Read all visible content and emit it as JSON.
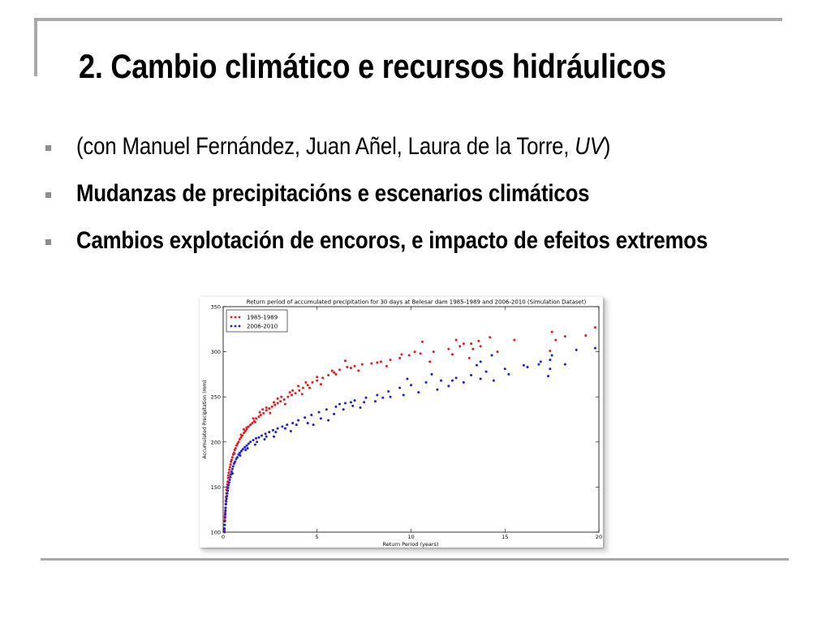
{
  "slide": {
    "title": "2. Cambio climático e recursos hidráulicos",
    "bullets": [
      {
        "prefix": "(con Manuel Fernández, Juan Añel, Laura de la Torre, ",
        "italic": "UV",
        "suffix": ")"
      },
      {
        "text": "Mudanzas de precipitacións e escenarios climáticos"
      },
      {
        "text": "Cambios explotación de encoros, e impacto de efeitos extremos"
      }
    ]
  },
  "chart_data": {
    "type": "scatter",
    "title": "Return period of accumulated precipitation for 30 days at Belesar dam 1985-1989 and 2006-2010 (Simulation Dataset)",
    "xlabel": "Return Period (years)",
    "ylabel": "Accumulated Precipitation (mm)",
    "xlim": [
      0,
      20
    ],
    "ylim": [
      100,
      350
    ],
    "xticks": [
      "0",
      "5",
      "10",
      "15",
      "20"
    ],
    "yticks": [
      "100",
      "150",
      "200",
      "250",
      "300",
      "350"
    ],
    "legend_position": "top-left",
    "grid": false,
    "colors": {
      "series_1985": "#e3191b",
      "series_2006": "#1a1ae0"
    },
    "series": [
      {
        "name": "1985-1989",
        "color": "#e3191b",
        "points": [
          [
            0.07,
            102
          ],
          [
            0.08,
            108
          ],
          [
            0.09,
            113
          ],
          [
            0.1,
            118
          ],
          [
            0.11,
            122
          ],
          [
            0.12,
            127
          ],
          [
            0.13,
            131
          ],
          [
            0.14,
            135
          ],
          [
            0.15,
            139
          ],
          [
            0.17,
            143
          ],
          [
            0.18,
            147
          ],
          [
            0.2,
            150
          ],
          [
            0.22,
            153
          ],
          [
            0.24,
            156
          ],
          [
            0.26,
            160
          ],
          [
            0.28,
            163
          ],
          [
            0.3,
            166
          ],
          [
            0.33,
            169
          ],
          [
            0.36,
            172
          ],
          [
            0.39,
            175
          ],
          [
            0.42,
            178
          ],
          [
            0.45,
            180
          ],
          [
            0.49,
            183
          ],
          [
            0.53,
            186
          ],
          [
            0.57,
            188
          ],
          [
            0.61,
            191
          ],
          [
            0.66,
            193
          ],
          [
            0.71,
            196
          ],
          [
            0.76,
            198
          ],
          [
            0.82,
            200
          ],
          [
            0.88,
            203
          ],
          [
            0.95,
            205
          ],
          [
            1.02,
            207
          ],
          [
            1.1,
            210
          ],
          [
            1.18,
            212
          ],
          [
            1.25,
            214
          ],
          [
            1.35,
            217
          ],
          [
            1.45,
            219
          ],
          [
            1.55,
            221
          ],
          [
            1.65,
            223
          ],
          [
            1.75,
            226
          ],
          [
            1.9,
            228
          ],
          [
            2.0,
            230
          ],
          [
            2.15,
            232
          ],
          [
            2.3,
            235
          ],
          [
            2.45,
            237
          ],
          [
            2.6,
            239
          ],
          [
            2.75,
            241
          ],
          [
            2.9,
            243
          ],
          [
            3.05,
            245
          ],
          [
            3.25,
            247
          ],
          [
            3.45,
            250
          ],
          [
            3.65,
            252
          ],
          [
            3.85,
            254
          ],
          [
            4.05,
            257
          ],
          [
            4.25,
            260
          ],
          [
            4.5,
            263
          ],
          [
            4.75,
            266
          ],
          [
            5.0,
            268
          ],
          [
            5.3,
            271
          ],
          [
            5.6,
            274
          ],
          [
            5.9,
            277
          ],
          [
            6.2,
            280
          ],
          [
            6.6,
            283
          ],
          [
            7.0,
            284
          ],
          [
            7.4,
            286
          ],
          [
            7.9,
            287
          ],
          [
            8.4,
            289
          ],
          [
            8.9,
            291
          ],
          [
            9.4,
            293
          ],
          [
            9.9,
            296
          ],
          [
            10.5,
            298
          ],
          [
            11.2,
            300
          ],
          [
            12.0,
            303
          ],
          [
            12.6,
            306
          ],
          [
            13.2,
            309
          ],
          [
            13.6,
            312
          ],
          [
            14.2,
            316
          ],
          [
            15.5,
            313
          ],
          [
            17.5,
            322
          ],
          [
            18.2,
            317
          ],
          [
            19.8,
            327
          ],
          [
            0.6,
            187
          ],
          [
            0.95,
            208
          ],
          [
            1.25,
            216
          ],
          [
            1.6,
            226
          ],
          [
            1.95,
            233
          ],
          [
            2.3,
            238
          ],
          [
            2.7,
            244
          ],
          [
            3.1,
            250
          ],
          [
            3.55,
            255
          ],
          [
            4.0,
            262
          ],
          [
            4.4,
            266
          ],
          [
            5.0,
            272
          ],
          [
            5.8,
            279
          ],
          [
            6.5,
            290
          ],
          [
            8.2,
            288
          ],
          [
            9.5,
            297
          ],
          [
            10.2,
            300
          ],
          [
            10.6,
            311
          ],
          [
            12.4,
            313
          ],
          [
            12.8,
            309
          ],
          [
            13.3,
            303
          ],
          [
            13.7,
            306
          ],
          [
            17.4,
            301
          ],
          [
            17.7,
            313
          ],
          [
            19.3,
            318
          ],
          [
            1.1,
            214
          ],
          [
            1.7,
            222
          ],
          [
            2.1,
            236
          ],
          [
            2.5,
            232
          ],
          [
            2.9,
            248
          ],
          [
            3.3,
            242
          ],
          [
            3.7,
            257
          ],
          [
            4.2,
            253
          ],
          [
            4.6,
            260
          ],
          [
            5.2,
            264
          ],
          [
            6.0,
            275
          ],
          [
            6.8,
            282
          ],
          [
            7.2,
            279
          ],
          [
            8.7,
            284
          ],
          [
            11.0,
            289
          ],
          [
            12.2,
            297
          ],
          [
            13.1,
            293
          ],
          [
            14.6,
            300
          ]
        ]
      },
      {
        "name": "2006-2010",
        "color": "#1a1ae0",
        "points": [
          [
            0.06,
            100
          ],
          [
            0.07,
            104
          ],
          [
            0.08,
            108
          ],
          [
            0.09,
            112
          ],
          [
            0.1,
            116
          ],
          [
            0.11,
            120
          ],
          [
            0.12,
            124
          ],
          [
            0.13,
            127
          ],
          [
            0.15,
            131
          ],
          [
            0.16,
            134
          ],
          [
            0.18,
            137
          ],
          [
            0.2,
            140
          ],
          [
            0.22,
            143
          ],
          [
            0.24,
            146
          ],
          [
            0.26,
            149
          ],
          [
            0.29,
            152
          ],
          [
            0.32,
            155
          ],
          [
            0.35,
            158
          ],
          [
            0.38,
            161
          ],
          [
            0.41,
            164
          ],
          [
            0.45,
            167
          ],
          [
            0.49,
            170
          ],
          [
            0.53,
            173
          ],
          [
            0.58,
            176
          ],
          [
            0.63,
            178
          ],
          [
            0.69,
            181
          ],
          [
            0.75,
            183
          ],
          [
            0.82,
            186
          ],
          [
            0.89,
            188
          ],
          [
            0.97,
            190
          ],
          [
            1.05,
            192
          ],
          [
            1.15,
            194
          ],
          [
            1.25,
            196
          ],
          [
            1.35,
            198
          ],
          [
            1.45,
            200
          ],
          [
            1.6,
            202
          ],
          [
            1.75,
            204
          ],
          [
            1.9,
            205
          ],
          [
            2.05,
            207
          ],
          [
            2.25,
            209
          ],
          [
            2.45,
            211
          ],
          [
            2.65,
            213
          ],
          [
            2.9,
            215
          ],
          [
            3.15,
            217
          ],
          [
            3.4,
            219
          ],
          [
            3.7,
            221
          ],
          [
            4.0,
            224
          ],
          [
            4.35,
            227
          ],
          [
            4.7,
            230
          ],
          [
            5.1,
            233
          ],
          [
            5.5,
            236
          ],
          [
            6.0,
            239
          ],
          [
            6.5,
            243
          ],
          [
            7.0,
            246
          ],
          [
            7.6,
            249
          ],
          [
            8.2,
            252
          ],
          [
            8.8,
            256
          ],
          [
            9.4,
            260
          ],
          [
            10.0,
            263
          ],
          [
            10.8,
            266
          ],
          [
            11.6,
            268
          ],
          [
            12.4,
            271
          ],
          [
            13.2,
            274
          ],
          [
            14.0,
            278
          ],
          [
            15.0,
            281
          ],
          [
            16.0,
            285
          ],
          [
            16.8,
            286
          ],
          [
            17.4,
            281
          ],
          [
            18.2,
            286
          ],
          [
            18.8,
            302
          ],
          [
            19.8,
            304
          ],
          [
            0.5,
            165
          ],
          [
            0.9,
            185
          ],
          [
            1.3,
            193
          ],
          [
            1.8,
            200
          ],
          [
            2.3,
            206
          ],
          [
            2.8,
            211
          ],
          [
            3.3,
            215
          ],
          [
            3.9,
            219
          ],
          [
            4.5,
            221
          ],
          [
            5.2,
            226
          ],
          [
            5.9,
            231
          ],
          [
            6.4,
            236
          ],
          [
            6.9,
            240
          ],
          [
            7.5,
            244
          ],
          [
            8.1,
            245
          ],
          [
            8.9,
            250
          ],
          [
            9.6,
            252
          ],
          [
            10.4,
            255
          ],
          [
            11.4,
            258
          ],
          [
            12.0,
            262
          ],
          [
            12.8,
            266
          ],
          [
            13.7,
            270
          ],
          [
            14.4,
            268
          ],
          [
            15.2,
            275
          ],
          [
            16.2,
            283
          ],
          [
            16.9,
            289
          ],
          [
            17.4,
            291
          ],
          [
            17.5,
            296
          ],
          [
            17.3,
            273
          ],
          [
            1.2,
            191
          ],
          [
            1.7,
            197
          ],
          [
            2.2,
            203
          ],
          [
            2.7,
            206
          ],
          [
            3.6,
            212
          ],
          [
            4.8,
            219
          ],
          [
            5.6,
            224
          ],
          [
            6.2,
            242
          ],
          [
            6.8,
            244
          ],
          [
            7.3,
            238
          ],
          [
            8.5,
            249
          ],
          [
            9.8,
            270
          ],
          [
            11.1,
            275
          ],
          [
            12.2,
            268
          ],
          [
            13.7,
            289
          ],
          [
            14.3,
            296
          ],
          [
            13.5,
            285
          ]
        ]
      }
    ]
  }
}
